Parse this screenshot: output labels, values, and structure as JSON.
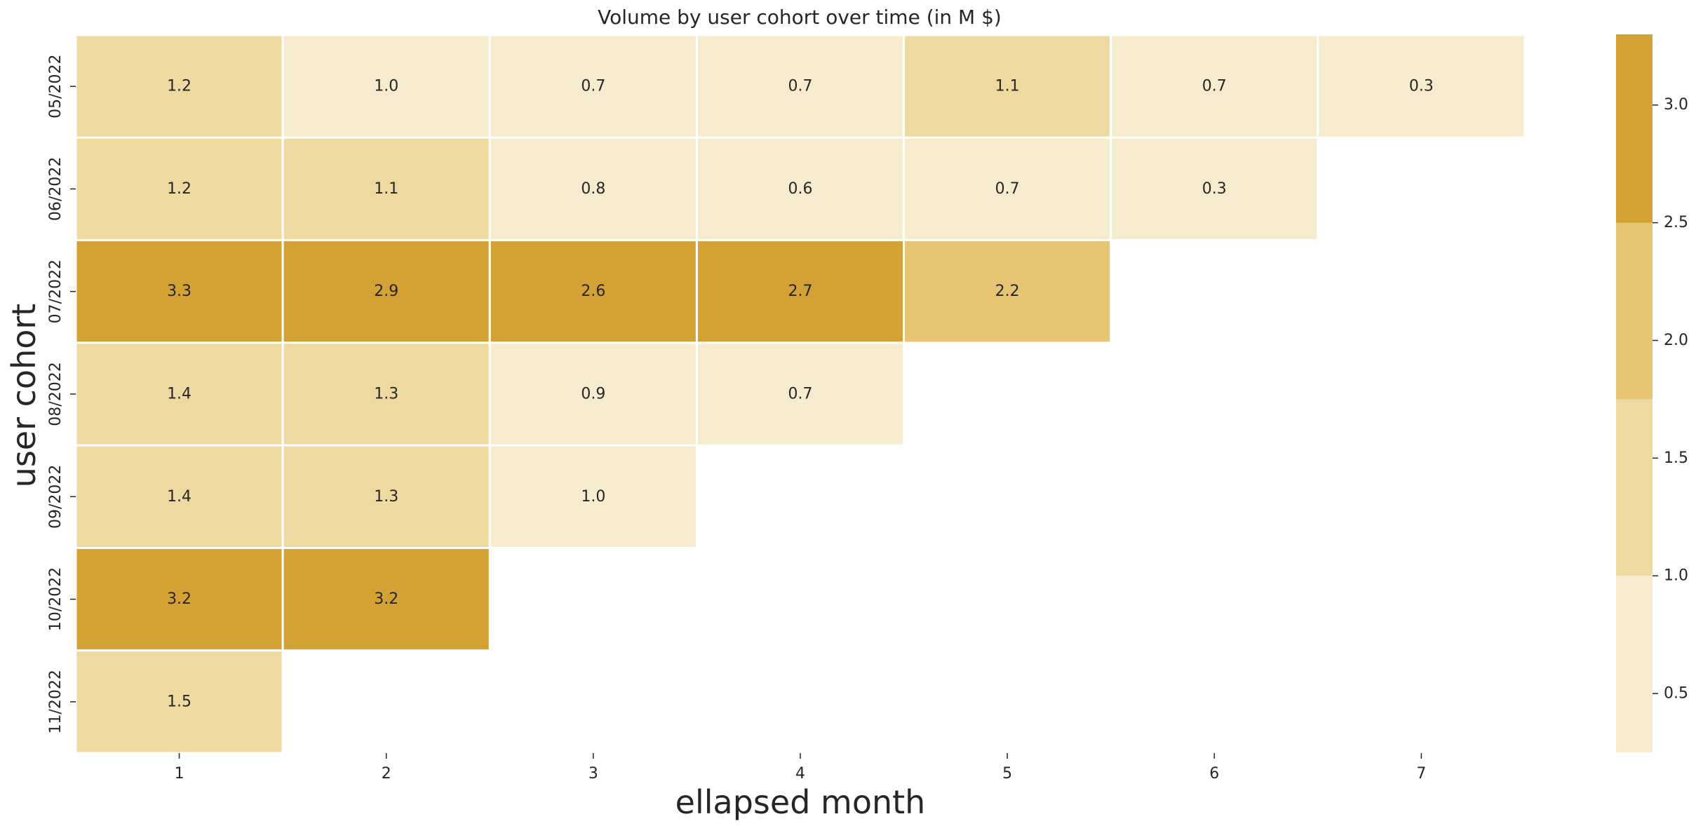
{
  "chart_data": {
    "type": "heatmap",
    "title": "Volume by user cohort over time (in M $)",
    "xlabel": "ellapsed month",
    "ylabel": "user cohort",
    "x_categories": [
      "1",
      "2",
      "3",
      "4",
      "5",
      "6",
      "7"
    ],
    "y_categories": [
      "05/2022",
      "06/2022",
      "07/2022",
      "08/2022",
      "09/2022",
      "10/2022",
      "11/2022"
    ],
    "values": [
      [
        1.2,
        1.0,
        0.7,
        0.7,
        1.1,
        0.7,
        0.3
      ],
      [
        1.2,
        1.1,
        0.8,
        0.6,
        0.7,
        0.3,
        null
      ],
      [
        3.3,
        2.9,
        2.6,
        2.7,
        2.2,
        null,
        null
      ],
      [
        1.4,
        1.3,
        0.9,
        0.7,
        null,
        null,
        null
      ],
      [
        1.4,
        1.3,
        1.0,
        null,
        null,
        null,
        null
      ],
      [
        3.2,
        3.2,
        null,
        null,
        null,
        null,
        null
      ],
      [
        1.5,
        null,
        null,
        null,
        null,
        null,
        null
      ]
    ],
    "colorbar": {
      "range": [
        0.25,
        3.3
      ],
      "boundaries": [
        0.25,
        1.0,
        1.75,
        2.5,
        3.3
      ],
      "colors": [
        "#f6ebce",
        "#eed9a1",
        "#e6c473",
        "#d4a234"
      ],
      "ticks": [
        0.5,
        1.0,
        1.5,
        2.0,
        2.5,
        3.0
      ],
      "tick_labels": [
        "0.5",
        "1.0",
        "1.5",
        "2.0",
        "2.5",
        "3.0"
      ]
    },
    "grid": false,
    "cell_label_format": "0.0"
  }
}
